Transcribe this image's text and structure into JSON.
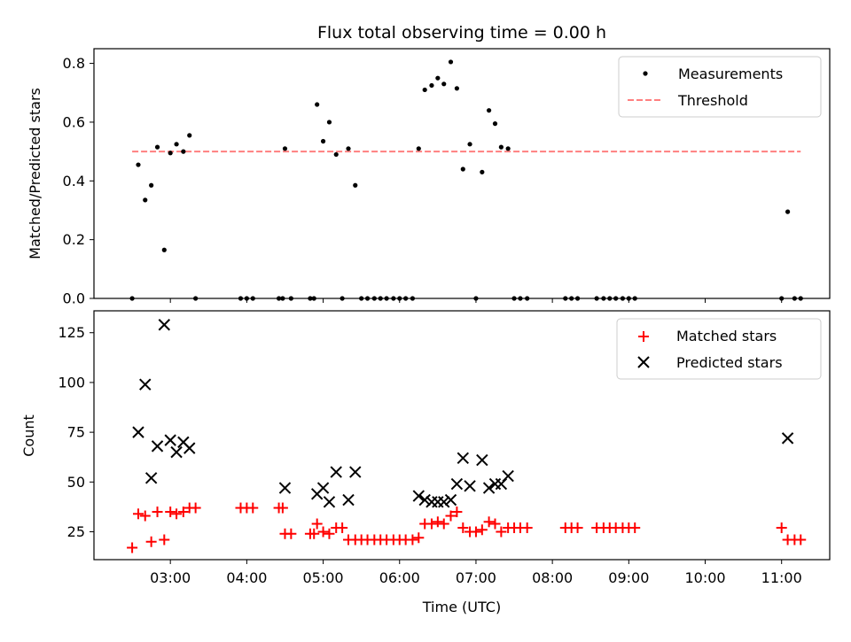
{
  "chart_data": [
    {
      "type": "scatter",
      "title": "Flux total observing time = 0.00 h",
      "xlabel": "",
      "ylabel": "Matched/Predicted stars",
      "ylim": [
        0,
        0.85
      ],
      "y_ticks": [
        "0.0",
        "0.2",
        "0.4",
        "0.6",
        "0.8"
      ],
      "legend": {
        "position": "top-right",
        "entries": [
          {
            "label": "Measurements",
            "marker": "dot",
            "color": "#000000"
          },
          {
            "label": "Threshold",
            "marker": "dashed-line",
            "color": "#ff7f7f"
          }
        ]
      },
      "threshold": {
        "name": "Threshold",
        "y": 0.5,
        "x_start": 2.5,
        "x_end": 11.25,
        "color": "#ff7f7f"
      },
      "series": [
        {
          "name": "Measurements",
          "color": "#000000",
          "x": [
            2.5,
            2.58,
            2.67,
            2.75,
            2.83,
            2.92,
            3.0,
            3.08,
            3.17,
            3.25,
            3.33,
            3.92,
            4.0,
            4.08,
            4.42,
            4.47,
            4.5,
            4.58,
            4.83,
            4.88,
            4.92,
            5.0,
            5.08,
            5.17,
            5.25,
            5.33,
            5.42,
            5.5,
            5.58,
            5.67,
            5.75,
            5.83,
            5.92,
            6.0,
            6.08,
            6.17,
            6.25,
            6.33,
            6.42,
            6.5,
            6.58,
            6.67,
            6.75,
            6.83,
            6.92,
            7.0,
            7.08,
            7.17,
            7.25,
            7.33,
            7.42,
            7.5,
            7.58,
            7.67,
            8.17,
            8.25,
            8.33,
            8.58,
            8.67,
            8.75,
            8.83,
            8.92,
            9.0,
            9.08,
            11.0,
            11.08,
            11.17,
            11.25
          ],
          "y": [
            0,
            0.455,
            0.335,
            0.385,
            0.515,
            0.165,
            0.495,
            0.525,
            0.5,
            0.555,
            0,
            0,
            0,
            0,
            0,
            0,
            0.51,
            0,
            0,
            0,
            0.66,
            0.535,
            0.6,
            0.49,
            0,
            0.51,
            0.385,
            0,
            0,
            0,
            0,
            0,
            0,
            0,
            0,
            0,
            0.51,
            0.71,
            0.725,
            0.75,
            0.73,
            0.805,
            0.715,
            0.44,
            0.525,
            0,
            0.43,
            0.64,
            0.595,
            0.515,
            0.51,
            0,
            0,
            0,
            0,
            0,
            0,
            0,
            0,
            0,
            0,
            0,
            0,
            0,
            0,
            0.295,
            0,
            0
          ]
        }
      ]
    },
    {
      "type": "scatter",
      "title": "",
      "xlabel": "Time (UTC)",
      "ylabel": "Count",
      "ylim": [
        11,
        136
      ],
      "xlim": [
        2.0,
        11.63
      ],
      "x_ticks": [
        {
          "x": 3,
          "label": "03:00"
        },
        {
          "x": 4,
          "label": "04:00"
        },
        {
          "x": 5,
          "label": "05:00"
        },
        {
          "x": 6,
          "label": "06:00"
        },
        {
          "x": 7,
          "label": "07:00"
        },
        {
          "x": 8,
          "label": "08:00"
        },
        {
          "x": 9,
          "label": "09:00"
        },
        {
          "x": 10,
          "label": "10:00"
        },
        {
          "x": 11,
          "label": "11:00"
        }
      ],
      "y_ticks": [
        "25",
        "50",
        "75",
        "100",
        "125"
      ],
      "legend": {
        "position": "top-right",
        "entries": [
          {
            "label": "Matched stars",
            "marker": "plus",
            "color": "#ff0000"
          },
          {
            "label": "Predicted stars",
            "marker": "x",
            "color": "#000000"
          }
        ]
      },
      "series": [
        {
          "name": "Matched stars",
          "marker": "plus",
          "color": "#ff0000",
          "x": [
            2.5,
            2.58,
            2.67,
            2.75,
            2.83,
            2.92,
            3.0,
            3.08,
            3.17,
            3.25,
            3.33,
            3.92,
            4.0,
            4.08,
            4.42,
            4.47,
            4.5,
            4.58,
            4.83,
            4.88,
            4.92,
            5.0,
            5.08,
            5.17,
            5.25,
            5.33,
            5.42,
            5.5,
            5.58,
            5.67,
            5.75,
            5.83,
            5.92,
            6.0,
            6.08,
            6.17,
            6.25,
            6.33,
            6.42,
            6.5,
            6.58,
            6.67,
            6.75,
            6.83,
            6.92,
            7.0,
            7.08,
            7.17,
            7.25,
            7.33,
            7.42,
            7.5,
            7.58,
            7.67,
            8.17,
            8.25,
            8.33,
            8.58,
            8.67,
            8.75,
            8.83,
            8.92,
            9.0,
            9.08,
            11.0,
            11.08,
            11.17,
            11.25
          ],
          "y": [
            17,
            34,
            33,
            20,
            35,
            21,
            35,
            34,
            35,
            37,
            37,
            37,
            37,
            37,
            37,
            37,
            24,
            24,
            24,
            24,
            29,
            25,
            24,
            27,
            27,
            21,
            21,
            21,
            21,
            21,
            21,
            21,
            21,
            21,
            21,
            21,
            22,
            29,
            29,
            30,
            29,
            33,
            35,
            27,
            25,
            25,
            26,
            30,
            29,
            25,
            27,
            27,
            27,
            27,
            27,
            27,
            27,
            27,
            27,
            27,
            27,
            27,
            27,
            27,
            27,
            21,
            21,
            21
          ]
        },
        {
          "name": "Predicted stars",
          "marker": "x",
          "color": "#000000",
          "x": [
            2.58,
            2.67,
            2.75,
            2.83,
            2.92,
            3.0,
            3.08,
            3.17,
            3.25,
            4.5,
            4.92,
            5.0,
            5.08,
            5.17,
            5.33,
            5.42,
            6.25,
            6.33,
            6.42,
            6.5,
            6.58,
            6.67,
            6.75,
            6.83,
            6.92,
            7.08,
            7.17,
            7.25,
            7.33,
            7.42,
            11.08
          ],
          "y": [
            75,
            99,
            52,
            68,
            129,
            71,
            65,
            70,
            67,
            47,
            44,
            47,
            40,
            55,
            41,
            55,
            43,
            41,
            40,
            40,
            40,
            41,
            49,
            62,
            48,
            61,
            47,
            49,
            49,
            53,
            72
          ]
        }
      ]
    }
  ]
}
